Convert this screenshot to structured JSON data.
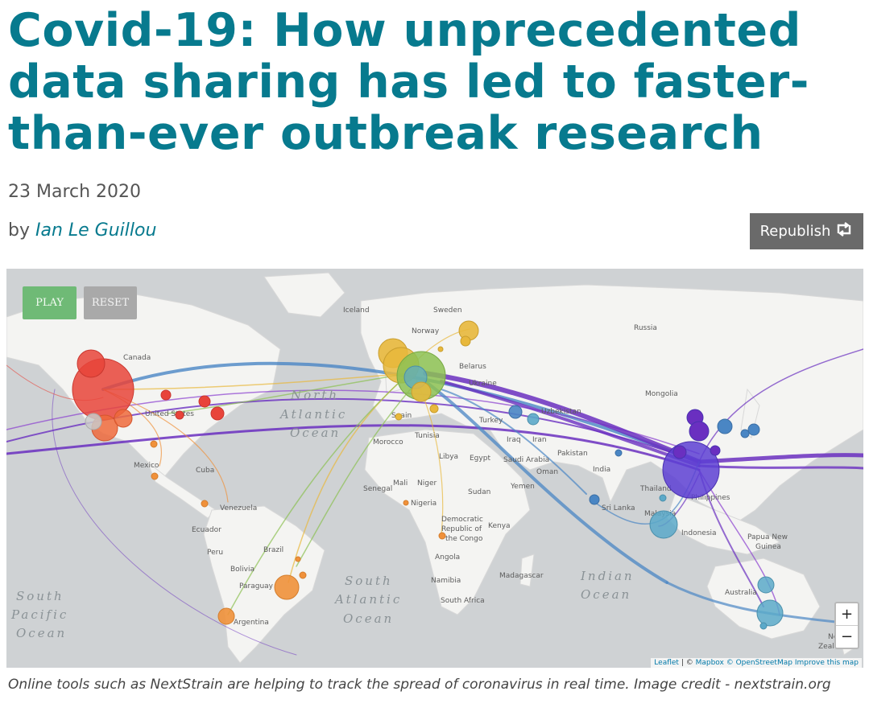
{
  "article": {
    "title_lines": [
      "Covid-19: How unprecedented",
      "data sharing has led to faster-",
      "than-ever outbreak research"
    ],
    "date": "23 March 2020",
    "byline_prefix": "by",
    "author": "Ian Le Guillou",
    "republish_label": "Republish",
    "republish_icon": "repost-icon"
  },
  "map": {
    "controls": {
      "play_label": "PLAY",
      "reset_label": "RESET",
      "zoom_in": "+",
      "zoom_out": "−"
    },
    "attribution": {
      "leaflet": "Leaflet",
      "sep": " | © ",
      "mapbox": "Mapbox",
      "osm": "© OpenStreetMap",
      "improve": "Improve this map"
    },
    "labels": {
      "iceland": "Iceland",
      "sweden": "Sweden",
      "norway": "Norway",
      "russia": "Russia",
      "canada": "Canada",
      "belarus": "Belarus",
      "ukraine": "Ukraine",
      "mongolia": "Mongolia",
      "uzbekistan": "Uzbekistan",
      "united_states": "United States",
      "turkey": "Turkey",
      "spain": "Spain",
      "tunisia": "Tunisia",
      "morocco": "Morocco",
      "iraq": "Iraq",
      "iran": "Iran",
      "pakistan": "Pakistan",
      "libya": "Libya",
      "egypt": "Egypt",
      "saudi_arabia": "Saudi Arabia",
      "oman": "Oman",
      "india": "India",
      "mexico": "Mexico",
      "cuba": "Cuba",
      "senegal": "Senegal",
      "mali": "Mali",
      "niger": "Niger",
      "sudan": "Sudan",
      "yemen": "Yemen",
      "thailand": "Thailand",
      "philippines": "Philippines",
      "venezuela": "Venezuela",
      "nigeria": "Nigeria",
      "sri_lanka": "Sri Lanka",
      "malaysia": "Malaysia",
      "ecuador": "Ecuador",
      "drc": "Democratic Republic of the Congo",
      "kenya": "Kenya",
      "indonesia": "Indonesia",
      "papua": "Papua New Guinea",
      "peru": "Peru",
      "brazil": "Brazil",
      "bolivia": "Bolivia",
      "angola": "Angola",
      "paraguay": "Paraguay",
      "namibia": "Namibia",
      "madagascar": "Madagascar",
      "australia": "Australia",
      "south_africa": "South Africa",
      "argentina": "Argentina",
      "new_zealand": "New Zealand"
    },
    "oceans": {
      "north_atlantic": [
        "North",
        "Atlantic",
        "Ocean"
      ],
      "south_atlantic": [
        "South",
        "Atlantic",
        "Ocean"
      ],
      "indian": [
        "Indian",
        "Ocean"
      ],
      "south_pacific": [
        "South",
        "Pacific",
        "Ocean"
      ]
    },
    "colors": {
      "water": "#cfd2d4",
      "land": "#f4f4f2",
      "china": "#5d40d3",
      "usa_west": "#e8443a",
      "europe_green": "#8cc152",
      "europe_yellow": "#e8b83c",
      "south_america": "#f0913a",
      "asia_teal": "#5ba9c9",
      "purple_lines": "#6a2fc0",
      "blue_lines": "#4a86c4"
    }
  },
  "caption": "Online tools such as NextStrain are helping to track the spread of coronavirus in real time. Image credit - nextstrain.org"
}
